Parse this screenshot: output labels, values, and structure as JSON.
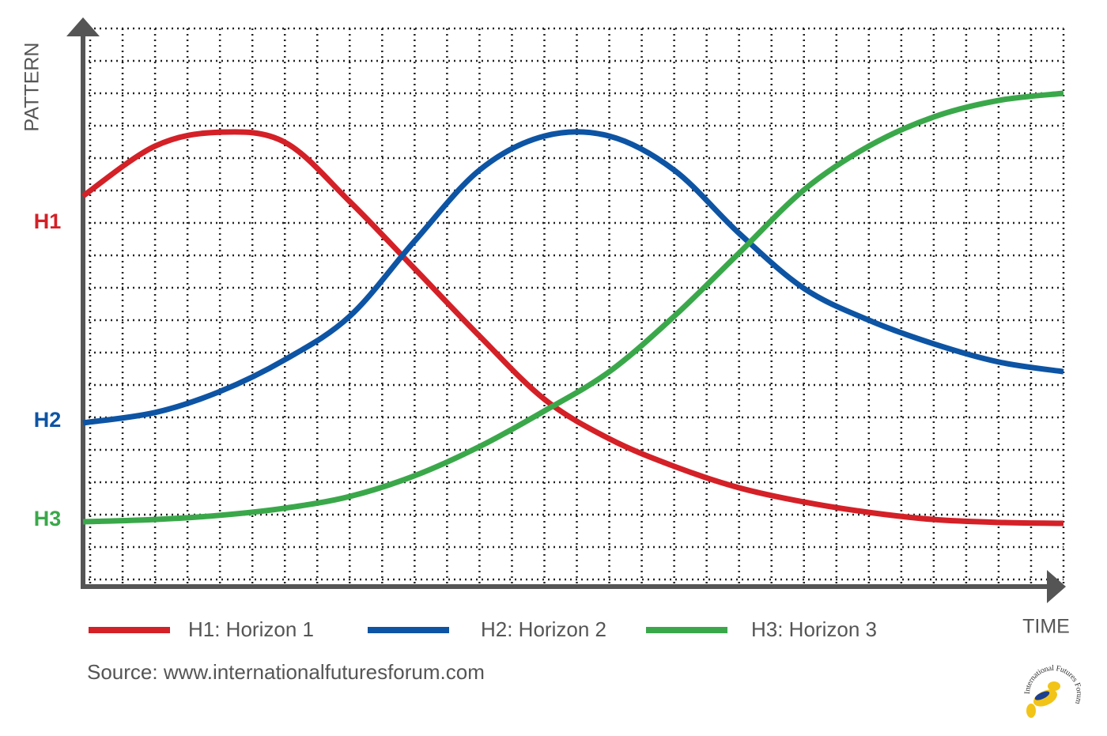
{
  "chart_data": {
    "type": "line",
    "y_label": "PATTERN",
    "x_label": "TIME",
    "x": [
      -0.22,
      2,
      4,
      6,
      8,
      10,
      12,
      14,
      16,
      18,
      20,
      22,
      24,
      26,
      28,
      30
    ],
    "series": [
      {
        "name": "H1: Horizon 1",
        "color": "#d42027",
        "values": [
          11.83,
          13.37,
          13.8,
          13.49,
          11.66,
          9.59,
          7.51,
          5.56,
          4.34,
          3.49,
          2.83,
          2.39,
          2.07,
          1.85,
          1.76,
          1.73
        ]
      },
      {
        "name": "H2: Horizon 2",
        "color": "#0d54a4",
        "values": [
          4.83,
          5.15,
          5.8,
          6.78,
          8.12,
          10.44,
          12.63,
          13.68,
          13.68,
          12.63,
          10.68,
          8.98,
          8.0,
          7.27,
          6.71,
          6.41
        ]
      },
      {
        "name": "H3: Horizon 3",
        "color": "#3aa84a",
        "values": [
          1.78,
          1.85,
          1.98,
          2.2,
          2.56,
          3.2,
          4.1,
          5.2,
          6.41,
          8.12,
          10.07,
          12.02,
          13.37,
          14.27,
          14.78,
          15.0
        ]
      }
    ],
    "xlim": [
      -0.22,
      30
    ],
    "ylim": [
      -0.22,
      17
    ],
    "yticks": [
      {
        "value": 11.0,
        "label": "H1"
      },
      {
        "value": 4.88,
        "label": "H2"
      },
      {
        "value": 1.83,
        "label": "H3"
      }
    ],
    "grid": true,
    "grid_step": 1,
    "legend": "bottom",
    "source": "Source: www.internationalfuturesforum.com",
    "logo": "International Futures Forum"
  }
}
